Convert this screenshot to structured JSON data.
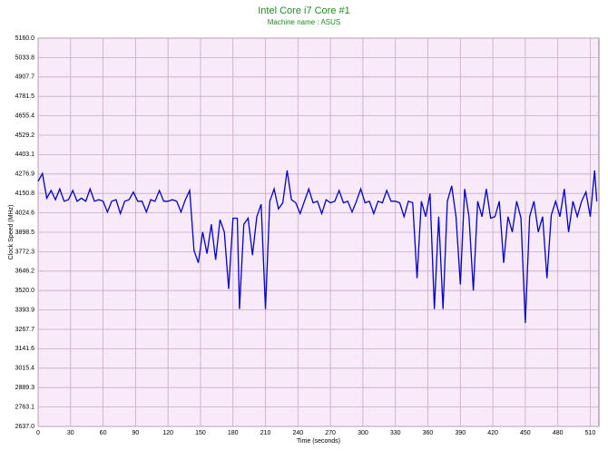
{
  "chart_data": {
    "type": "line",
    "title": "Intel Core i7 Core #1",
    "subtitle": "Machine name : ASUS",
    "x_label": "Time (seconds)",
    "y_label": "Clock Speed (MHz)",
    "grid": true,
    "xlim": [
      0,
      518
    ],
    "xticks": [
      0,
      30,
      60,
      90,
      120,
      150,
      180,
      210,
      240,
      270,
      300,
      330,
      360,
      390,
      420,
      450,
      480,
      510
    ],
    "ylim": [
      2637,
      5160
    ],
    "yticks": [
      {
        "value": 2637,
        "label": "2637.0"
      },
      2763.1,
      2889.3,
      3015.4,
      3141.6,
      3267.7,
      3393.9,
      {
        "value": 3520,
        "label": "3520.0"
      },
      3646.2,
      3772.3,
      3898.5,
      4024.6,
      4150.8,
      4276.9,
      4403.1,
      4529.2,
      4655.4,
      4781.5,
      4907.7,
      5033.8,
      {
        "value": 5160,
        "label": "5160.0"
      }
    ],
    "x": [
      0,
      4,
      8,
      12,
      16,
      20,
      24,
      28,
      32,
      36,
      40,
      44,
      48,
      52,
      56,
      60,
      64,
      68,
      72,
      76,
      80,
      84,
      88,
      92,
      96,
      100,
      104,
      108,
      112,
      116,
      120,
      124,
      128,
      132,
      136,
      140,
      144,
      148,
      152,
      156,
      160,
      164,
      168,
      172,
      176,
      180,
      184,
      186,
      190,
      194,
      198,
      202,
      206,
      210,
      214,
      218,
      222,
      226,
      230,
      234,
      238,
      242,
      246,
      250,
      254,
      258,
      262,
      266,
      270,
      274,
      278,
      282,
      286,
      290,
      294,
      298,
      302,
      306,
      310,
      314,
      318,
      322,
      326,
      330,
      334,
      338,
      342,
      346,
      350,
      354,
      358,
      362,
      366,
      370,
      374,
      378,
      382,
      386,
      390,
      394,
      398,
      402,
      406,
      410,
      414,
      418,
      422,
      426,
      430,
      434,
      438,
      442,
      446,
      450,
      454,
      458,
      462,
      466,
      470,
      474,
      478,
      482,
      486,
      490,
      494,
      498,
      502,
      506,
      510,
      514,
      516
    ],
    "series": [
      {
        "name": "Clock Speed",
        "color": "#0000c8",
        "values": [
          4230,
          4280,
          4120,
          4170,
          4110,
          4180,
          4100,
          4110,
          4170,
          4100,
          4120,
          4100,
          4180,
          4100,
          4110,
          4100,
          4030,
          4100,
          4110,
          4020,
          4100,
          4110,
          4160,
          4100,
          4100,
          4030,
          4110,
          4100,
          4170,
          4100,
          4100,
          4110,
          4100,
          4030,
          4110,
          4170,
          3780,
          3700,
          3900,
          3760,
          3950,
          3720,
          3980,
          3900,
          3530,
          3990,
          3990,
          3400,
          3950,
          3990,
          3750,
          4000,
          4080,
          3400,
          4100,
          4180,
          4050,
          4090,
          4300,
          4110,
          4090,
          4020,
          4100,
          4180,
          4090,
          4100,
          4020,
          4110,
          4090,
          4100,
          4170,
          4090,
          4100,
          4030,
          4100,
          4180,
          4090,
          4100,
          4020,
          4100,
          4090,
          4170,
          4100,
          4100,
          4090,
          4000,
          4100,
          4090,
          3600,
          4100,
          4000,
          4150,
          3400,
          4000,
          3400,
          4100,
          4200,
          4000,
          3560,
          4180,
          4000,
          3520,
          4100,
          4000,
          4180,
          3990,
          4000,
          4100,
          3700,
          4000,
          3900,
          4100,
          3990,
          3310,
          4000,
          4100,
          3900,
          4000,
          3600,
          4010,
          4100,
          4000,
          4180,
          3900,
          4100,
          4000,
          4100,
          4160,
          4000,
          4300,
          4100
        ]
      }
    ]
  }
}
